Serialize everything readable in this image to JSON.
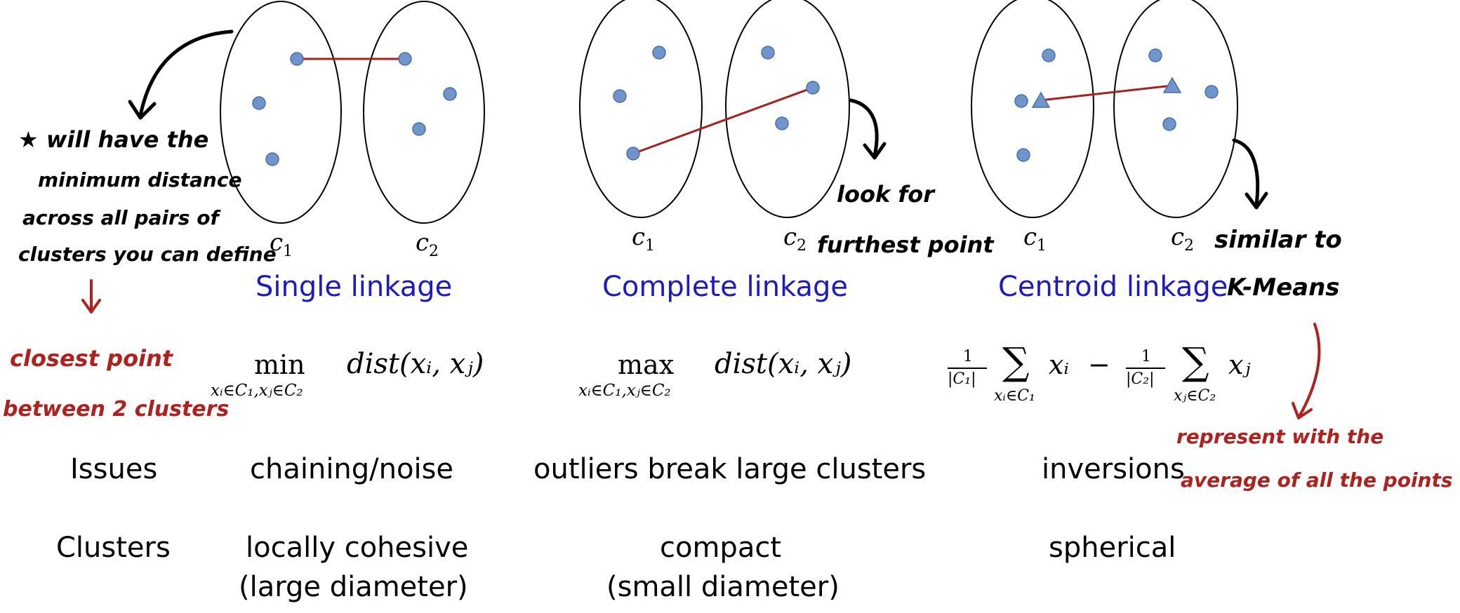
{
  "colors": {
    "point_fill": "#6f95cc",
    "point_stroke": "#4a6fa8",
    "link_line": "#a8201c",
    "title_blue": "#1a1acc",
    "annotation_red": "#b0201c",
    "annotation_black": "#000000"
  },
  "cluster_labels": {
    "c1": "c",
    "c1_sub": "1",
    "c2": "c",
    "c2_sub": "2"
  },
  "titles": {
    "single": "Single linkage",
    "complete": "Complete linkage",
    "centroid": "Centroid linkage"
  },
  "formulas": {
    "single_op": "min",
    "single_sub": "xᵢ∈C₁,xⱼ∈C₂",
    "single_expr": "dist(xᵢ, xⱼ)",
    "complete_op": "max",
    "complete_sub": "xᵢ∈C₁,xⱼ∈C₂",
    "complete_expr": "dist(xᵢ, xⱼ)",
    "centroid_frac1": "1",
    "centroid_den1": "|C₁|",
    "centroid_sum1_sub": "xᵢ∈C₁",
    "centroid_term1": "xᵢ",
    "centroid_minus": "−",
    "centroid_frac2": "1",
    "centroid_den2": "|C₂|",
    "centroid_sum2_sub": "xⱼ∈C₂",
    "centroid_term2": "xⱼ",
    "sigma": "∑"
  },
  "rows": {
    "issues_label": "Issues",
    "clusters_label": "Clusters",
    "single_issue": "chaining/noise",
    "complete_issue": "outliers break large clusters",
    "centroid_issue": "inversions",
    "single_cluster_line1": "locally cohesive",
    "single_cluster_line2": "(large diameter)",
    "complete_cluster_line1": "compact",
    "complete_cluster_line2": "(small diameter)",
    "centroid_cluster": "spherical"
  },
  "annotations": {
    "star_line1": "★ will have the",
    "star_line2": "minimum distance",
    "star_line3": "across all pairs of",
    "star_line4": "clusters you can define",
    "closest_line1": "closest point",
    "closest_line2": "between 2 clusters",
    "look_line1": "look for",
    "look_line2": "furthest point",
    "similar_line1": "similar to",
    "kmeans": "K-Means",
    "represent_line1": "represent with the",
    "represent_line2": "average of all the points"
  }
}
